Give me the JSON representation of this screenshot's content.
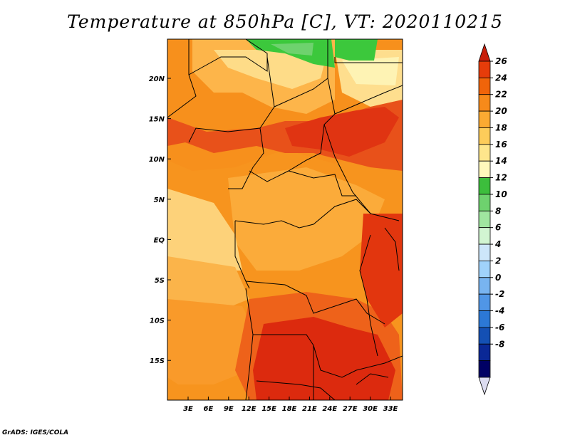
{
  "title": "Temperature at 850hPa [C], VT: 2020110215",
  "credit": "GrADS: IGES/COLA",
  "map": {
    "lon_labels": [
      "3E",
      "6E",
      "9E",
      "12E",
      "15E",
      "18E",
      "21E",
      "24E",
      "27E",
      "30E",
      "33E"
    ],
    "lat_labels": [
      "20N",
      "15N",
      "10N",
      "5N",
      "EQ",
      "5S",
      "10S",
      "15S"
    ]
  },
  "colorbar": {
    "levels": [
      "26",
      "24",
      "22",
      "20",
      "18",
      "16",
      "14",
      "12",
      "10",
      "8",
      "6",
      "4",
      "2",
      "0",
      "-2",
      "-4",
      "-6",
      "-8"
    ],
    "colors": [
      "#c81e0a",
      "#e63c0a",
      "#f0640a",
      "#f78a1a",
      "#fbaa32",
      "#fdcc5a",
      "#fee68c",
      "#fef8bc",
      "#3cbe3c",
      "#6ed26e",
      "#a0e6a0",
      "#d2f5d2",
      "#cde6fa",
      "#a0d2fa",
      "#78b4f0",
      "#5096e6",
      "#2c78d6",
      "#1450b4",
      "#0a2896",
      "#000064",
      "#dcdcf0"
    ]
  },
  "colors": {
    "hot": "#dc1e0a",
    "warm": "#f0821a",
    "mild": "#fbb240",
    "cool": "#fee08a",
    "green": "#3cc83c"
  }
}
